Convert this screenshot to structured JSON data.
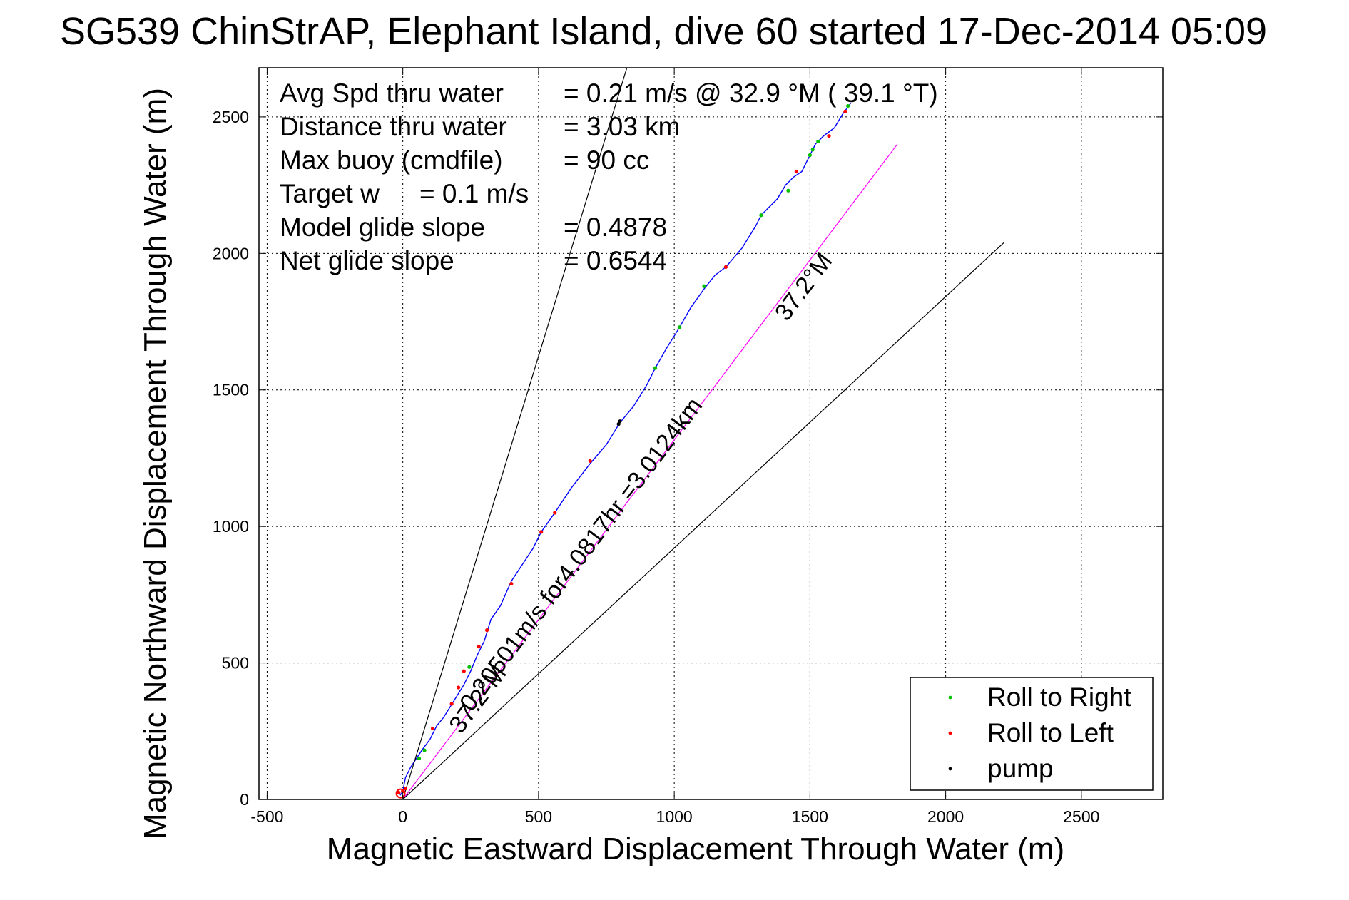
{
  "colors": {
    "track": "#0000ff",
    "roll_right": "#00c000",
    "roll_left": "#ff0000",
    "pump": "#000000",
    "course_line": "#ff00ff",
    "gridline": "#000000",
    "background": "#ffffff"
  },
  "chart_data": {
    "type": "line",
    "title": "SG539 ChinStrAP, Elephant Island, dive 60 started 17-Dec-2014 05:09",
    "xlabel": "Magnetic Eastward Displacement Through Water (m)",
    "ylabel": "Magnetic Northward Displacement Through Water (m)",
    "xlim": [
      -530,
      2800
    ],
    "ylim": [
      0,
      2680
    ],
    "xticks": [
      -500,
      0,
      500,
      1000,
      1500,
      2000,
      2500
    ],
    "yticks": [
      0,
      500,
      1000,
      1500,
      2000,
      2500
    ],
    "xtick_labels": [
      "-500",
      "0",
      "500",
      "1000",
      "1500",
      "2000",
      "2500"
    ],
    "ytick_labels": [
      "0",
      "500",
      "1000",
      "1500",
      "2000",
      "2500"
    ],
    "grid": true,
    "legend_position": "bottom-right",
    "legend": [
      {
        "label": "Roll to Right",
        "color": "#00c000",
        "marker": "dot"
      },
      {
        "label": "Roll to Left",
        "color": "#ff0000",
        "marker": "dot"
      },
      {
        "label": "pump",
        "color": "#000000",
        "marker": "dot"
      }
    ],
    "stats": [
      {
        "label": "Avg Spd thru water",
        "value": "=  0.21 m/s @  32.9 °M ( 39.1 °T)"
      },
      {
        "label": "Distance thru water",
        "value": "=  3.03 km"
      },
      {
        "label": "Max buoy (cmdfile)",
        "value": "= 90 cc"
      },
      {
        "label": "Target w",
        "value": "= 0.1 m/s"
      },
      {
        "label": "Model glide slope",
        "value": "= 0.4878"
      },
      {
        "label": "Net glide slope",
        "value": "= 0.6544"
      }
    ],
    "series": [
      {
        "name": "track",
        "color": "#0000ff",
        "x": [
          -10,
          0,
          10,
          30,
          50,
          70,
          100,
          125,
          150,
          175,
          200,
          225,
          250,
          275,
          300,
          325,
          360,
          400,
          440,
          480,
          510,
          560,
          620,
          690,
          750,
          800,
          850,
          900,
          930,
          970,
          1020,
          1060,
          1110,
          1150,
          1190,
          1250,
          1300,
          1320,
          1350,
          1380,
          1410,
          1440,
          1470,
          1500,
          1520,
          1550,
          1590,
          1620,
          1650
        ],
        "y": [
          15,
          30,
          80,
          120,
          150,
          180,
          220,
          270,
          300,
          340,
          380,
          420,
          470,
          530,
          580,
          660,
          710,
          800,
          860,
          920,
          980,
          1050,
          1140,
          1230,
          1300,
          1380,
          1440,
          1520,
          1580,
          1650,
          1730,
          1800,
          1870,
          1920,
          1950,
          2020,
          2100,
          2140,
          2170,
          2200,
          2250,
          2280,
          2300,
          2360,
          2400,
          2430,
          2460,
          2510,
          2550
        ]
      },
      {
        "name": "course",
        "color": "#ff00ff",
        "x": [
          0,
          1822
        ],
        "y": [
          0,
          2400
        ]
      },
      {
        "name": "envelope-left",
        "color": "#000000",
        "x": [
          0,
          1380
        ],
        "y": [
          0,
          4480
        ]
      },
      {
        "name": "envelope-right",
        "color": "#000000",
        "x": [
          0,
          2215
        ],
        "y": [
          0,
          2040
        ]
      }
    ],
    "points": {
      "roll_right": [
        [
          60,
          150
        ],
        [
          80,
          180
        ],
        [
          245,
          485
        ],
        [
          930,
          1580
        ],
        [
          1020,
          1730
        ],
        [
          1110,
          1880
        ],
        [
          1320,
          2140
        ],
        [
          1420,
          2230
        ],
        [
          1500,
          2360
        ],
        [
          1510,
          2380
        ],
        [
          1530,
          2410
        ],
        [
          1640,
          2540
        ]
      ],
      "roll_left": [
        [
          -15,
          25
        ],
        [
          0,
          30
        ],
        [
          10,
          40
        ],
        [
          110,
          260
        ],
        [
          180,
          350
        ],
        [
          205,
          410
        ],
        [
          225,
          470
        ],
        [
          280,
          560
        ],
        [
          310,
          620
        ],
        [
          400,
          790
        ],
        [
          510,
          980
        ],
        [
          560,
          1050
        ],
        [
          690,
          1240
        ],
        [
          1190,
          1950
        ],
        [
          1450,
          2300
        ],
        [
          1570,
          2430
        ],
        [
          1630,
          2520
        ]
      ],
      "pump": [
        [
          795,
          1375
        ],
        [
          800,
          1385
        ]
      ]
    },
    "annotations": [
      {
        "text": "0.20501m/s for4.0817hr =3.0124km",
        "x": 680,
        "y": 880,
        "angle": -53
      },
      {
        "text": "37.2°M",
        "x": 1500,
        "y": 1860,
        "angle": -53
      },
      {
        "text": "37.2°M",
        "x": 300,
        "y": 350,
        "angle": -53
      }
    ]
  }
}
